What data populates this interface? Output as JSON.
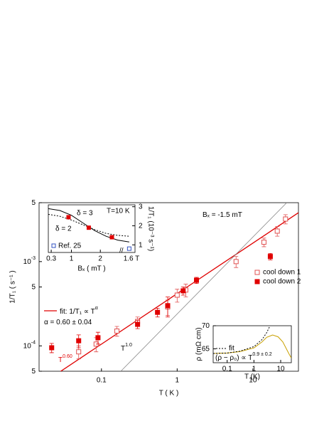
{
  "chart_data": [
    {
      "type": "scatter",
      "x_label": "T ( K )",
      "y_label": "1/T₁ ( s⁻¹ )",
      "log_x": true,
      "log_y": true,
      "xlim": [
        0.015,
        40
      ],
      "ylim": [
        5e-05,
        0.005
      ],
      "xticks": [
        0.1,
        1,
        10
      ],
      "yticks": [
        {
          "value": 5e-05,
          "label": "5"
        },
        {
          "value": 0.0001,
          "label": "10",
          "sup": "-4"
        },
        {
          "value": 0.0005,
          "label": "5"
        },
        {
          "value": 0.001,
          "label": "10",
          "sup": "-3"
        },
        {
          "value": 0.005,
          "label": "5"
        }
      ],
      "legend": "right",
      "series": [
        {
          "name": "cool down 1",
          "marker": "open-square",
          "color": "#e05050",
          "x": [
            0.05,
            0.085,
            0.16,
            0.3,
            0.75,
            1.0,
            1.3,
            6,
            14,
            21,
            27
          ],
          "values": [
            8.5e-05,
            0.000105,
            0.00015,
            0.000195,
            0.00029,
            0.0004,
            0.00046,
            0.001,
            0.0017,
            0.0023,
            0.0032
          ],
          "errors": [
            1.5e-05,
            2e-05,
            2e-05,
            2.5e-05,
            6e-05,
            7e-05,
            8e-05,
            0.00015,
            0.0002,
            0.0003,
            0.0004
          ]
        },
        {
          "name": "cool down 2",
          "marker": "filled-square",
          "color": "#e00000",
          "x": [
            0.022,
            0.05,
            0.09,
            0.3,
            0.55,
            0.75,
            1.2,
            1.8,
            17
          ],
          "values": [
            9.5e-05,
            0.000115,
            0.000125,
            0.00018,
            0.00025,
            0.0003,
            0.00045,
            0.0006,
            0.00115
          ],
          "errors": [
            1.2e-05,
            2e-05,
            2e-05,
            2e-05,
            3e-05,
            8e-05,
            5e-05,
            5e-05,
            0.0001
          ]
        }
      ],
      "lines": [
        {
          "label": "fit: 1/T₁ ∝ T",
          "sup": "α",
          "color": "#e00000",
          "x": [
            0.02,
            40
          ],
          "values": [
            4e-05,
            0.0038
          ]
        },
        {
          "color": "#888888",
          "x": [
            0.18,
            28
          ],
          "values": [
            5e-05,
            0.005
          ]
        }
      ],
      "annotations": [
        {
          "text": "Bₓ = -1.5 mT"
        },
        {
          "text": "α = 0.60 ± 0.04"
        },
        {
          "text": "T",
          "sup": "0.60",
          "color": "#e00000"
        },
        {
          "text": "T",
          "sup": "1.0",
          "color": "#000000"
        }
      ]
    },
    {
      "type": "line",
      "x_label": "Bₓ ( mT )",
      "y_label": "1/T₁ (10⁻³ s⁻¹)",
      "xlim": [
        0.2,
        3.2
      ],
      "ylim": [
        0.6,
        3.1
      ],
      "xticks": [
        0.3,
        1,
        2
      ],
      "yticks": [
        1,
        2,
        3
      ],
      "axis_break": "//",
      "break_label": "1.6 T",
      "annotation": "T=10 K",
      "series": [
        {
          "name": "δ = 3",
          "color": "#000000",
          "dash": false,
          "x": [
            0.2,
            0.6,
            1.0,
            1.4,
            1.8,
            2.2,
            2.6,
            3.0
          ],
          "values": [
            2.9,
            2.8,
            2.55,
            2.15,
            1.75,
            1.45,
            1.25,
            1.15
          ]
        },
        {
          "name": "δ = 2",
          "color": "#000000",
          "dash": true,
          "x": [
            0.2,
            0.6,
            1.0,
            1.4,
            1.8,
            2.2,
            2.6,
            3.0
          ],
          "values": [
            2.6,
            2.5,
            2.3,
            2.05,
            1.8,
            1.6,
            1.5,
            1.45
          ]
        }
      ],
      "points": {
        "color": "#e00000",
        "x": [
          0.9,
          1.6,
          2.4
        ],
        "values": [
          2.45,
          1.9,
          1.4
        ]
      },
      "reference": {
        "name": "Ref. 25",
        "color": "#3050c0",
        "x": [
          3.0
        ],
        "values": [
          0.8
        ]
      }
    },
    {
      "type": "line",
      "x_label": "T (K)",
      "y_label": "ρ (mΩ cm)",
      "log_x": true,
      "xlim": [
        0.03,
        25
      ],
      "ylim": [
        62,
        70
      ],
      "xticks": [
        0.1,
        1,
        10
      ],
      "yticks": [
        65,
        70
      ],
      "series": [
        {
          "color": "#c8a000",
          "dash": false,
          "x": [
            0.03,
            0.1,
            0.3,
            1,
            2,
            3,
            5,
            8,
            12,
            20,
            25
          ],
          "values": [
            64.0,
            64.1,
            64.4,
            65.2,
            66.5,
            67.5,
            68.0,
            67.6,
            66.5,
            64.0,
            63.0
          ]
        },
        {
          "name": "fit",
          "color": "#000000",
          "dash": true,
          "x": [
            0.03,
            0.1,
            0.3,
            1,
            2,
            3,
            4
          ],
          "values": [
            64.0,
            64.1,
            64.5,
            65.5,
            67.0,
            68.5,
            70
          ]
        }
      ],
      "note": {
        "text": "(ρ − ρ₀) ∝ T",
        "sup": "0.9 ± 0.2"
      }
    }
  ]
}
